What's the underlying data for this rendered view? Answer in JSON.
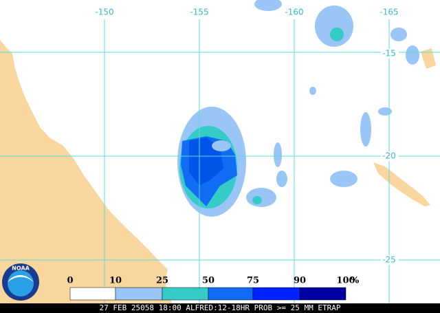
{
  "logo": "NOAA",
  "map": {
    "longitude_labels": [
      "-150",
      "-155",
      "-160",
      "-165"
    ],
    "latitude_labels": [
      "-15",
      "-20",
      "-25"
    ]
  },
  "legend": {
    "labels": [
      "0",
      "10",
      "25",
      "50",
      "75",
      "90",
      "100"
    ],
    "unit": "%",
    "colors": [
      "#ffffff",
      "#99c6f7",
      "#35ccc8",
      "#0f6cf3",
      "#0022ff",
      "#0000a0"
    ]
  },
  "caption": "27 FEB 25058 18:00 ALFRED:12-18HR PROB >= 25 MM ETRAP"
}
